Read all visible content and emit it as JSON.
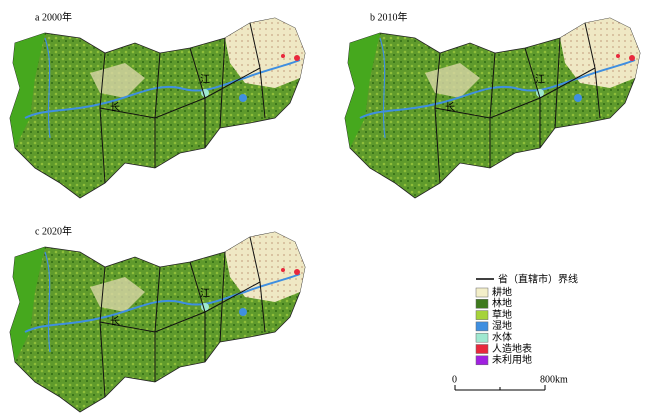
{
  "panels": [
    {
      "label": "a 2000年"
    },
    {
      "label": "b 2010年"
    },
    {
      "label": "c 2020年"
    }
  ],
  "map_labels": [
    "长",
    "江"
  ],
  "legend": {
    "boundary": "省（直辖市）界线",
    "items": [
      {
        "label": "耕地",
        "color": "#f3efc9"
      },
      {
        "label": "林地",
        "color": "#3f7a1e"
      },
      {
        "label": "草地",
        "color": "#a6d33a"
      },
      {
        "label": "湿地",
        "color": "#3f8fe0"
      },
      {
        "label": "水体",
        "color": "#9fe8d0"
      },
      {
        "label": "人造地表",
        "color": "#e8283c"
      },
      {
        "label": "未利用地",
        "color": "#a020e0"
      }
    ]
  },
  "scale_bar": {
    "labels": [
      "0",
      "800km"
    ]
  }
}
